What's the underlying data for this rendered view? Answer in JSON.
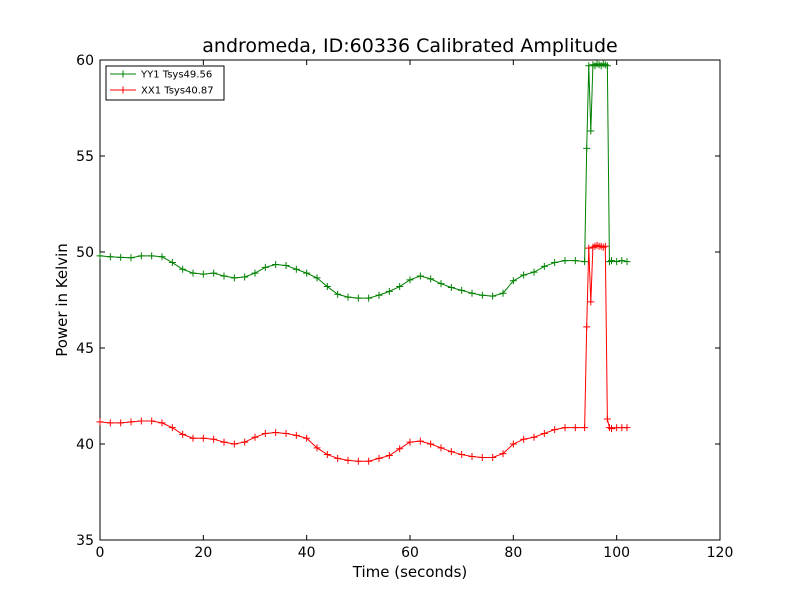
{
  "chart_data": {
    "type": "line",
    "title": "andromeda, ID:60336 Calibrated Amplitude",
    "xlabel": "Time (seconds)",
    "ylabel": "Power in Kelvin",
    "xlim": [
      0,
      120
    ],
    "ylim": [
      35,
      60
    ],
    "xticks": [
      0,
      20,
      40,
      60,
      80,
      100,
      120
    ],
    "yticks": [
      35,
      40,
      45,
      50,
      55,
      60
    ],
    "grid": false,
    "legend_position": "top-left",
    "marker": "plus",
    "series": [
      {
        "name": "YY1 Tsys49.56",
        "color": "#008000",
        "x": [
          0,
          2,
          4,
          6,
          8,
          10,
          12,
          14,
          16,
          18,
          20,
          22,
          24,
          26,
          28,
          30,
          32,
          34,
          36,
          38,
          40,
          42,
          44,
          46,
          48,
          50,
          52,
          54,
          56,
          58,
          60,
          62,
          64,
          66,
          68,
          70,
          72,
          74,
          76,
          78,
          80,
          82,
          84,
          86,
          88,
          90,
          92,
          93.8,
          94.2,
          94.6,
          95.0,
          95.4,
          95.8,
          96.2,
          96.6,
          97.0,
          97.4,
          97.8,
          98.2,
          98.6,
          99,
          100,
          101,
          102
        ],
        "values": [
          49.8,
          49.75,
          49.72,
          49.7,
          49.8,
          49.8,
          49.75,
          49.45,
          49.1,
          48.9,
          48.85,
          48.9,
          48.75,
          48.65,
          48.7,
          48.9,
          49.2,
          49.35,
          49.3,
          49.1,
          48.9,
          48.65,
          48.2,
          47.8,
          47.65,
          47.6,
          47.6,
          47.75,
          47.95,
          48.2,
          48.55,
          48.75,
          48.6,
          48.35,
          48.15,
          48.0,
          47.85,
          47.75,
          47.7,
          47.85,
          48.5,
          48.8,
          48.95,
          49.25,
          49.45,
          49.55,
          49.55,
          49.5,
          55.4,
          59.7,
          56.3,
          59.75,
          59.7,
          59.8,
          59.75,
          59.7,
          59.8,
          59.75,
          59.7,
          49.5,
          49.55,
          49.5,
          49.55,
          49.5
        ]
      },
      {
        "name": "XX1 Tsys40.87",
        "color": "#ff0000",
        "x": [
          0,
          2,
          4,
          6,
          8,
          10,
          12,
          14,
          16,
          18,
          20,
          22,
          24,
          26,
          28,
          30,
          32,
          34,
          36,
          38,
          40,
          42,
          44,
          46,
          48,
          50,
          52,
          54,
          56,
          58,
          60,
          62,
          64,
          66,
          68,
          70,
          72,
          74,
          76,
          78,
          80,
          82,
          84,
          86,
          88,
          90,
          92,
          93.8,
          94.2,
          94.6,
          95.0,
          95.4,
          95.8,
          96.2,
          96.6,
          97.0,
          97.4,
          97.8,
          98.2,
          98.6,
          99,
          100,
          101,
          102
        ],
        "values": [
          41.15,
          41.1,
          41.1,
          41.15,
          41.2,
          41.2,
          41.1,
          40.85,
          40.5,
          40.3,
          40.3,
          40.25,
          40.1,
          40.0,
          40.1,
          40.35,
          40.55,
          40.6,
          40.55,
          40.45,
          40.3,
          39.8,
          39.45,
          39.25,
          39.15,
          39.1,
          39.1,
          39.25,
          39.4,
          39.75,
          40.1,
          40.15,
          40.0,
          39.8,
          39.6,
          39.45,
          39.35,
          39.3,
          39.3,
          39.5,
          40.0,
          40.25,
          40.35,
          40.55,
          40.75,
          40.85,
          40.85,
          40.85,
          46.1,
          50.2,
          47.4,
          50.25,
          50.3,
          50.35,
          50.3,
          50.3,
          50.25,
          50.3,
          41.3,
          40.85,
          40.8,
          40.85,
          40.85,
          40.85
        ]
      }
    ]
  }
}
